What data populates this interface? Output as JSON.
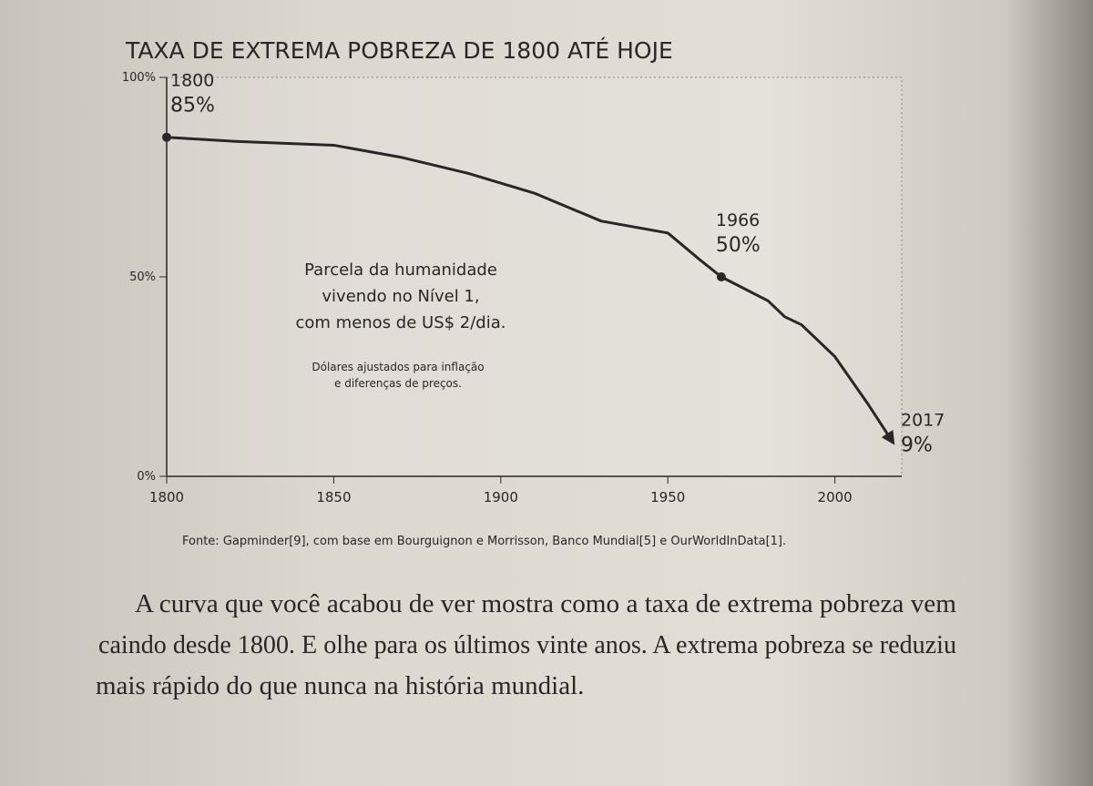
{
  "chart_data": {
    "type": "line",
    "title": "TAXA DE EXTREMA POBREZA DE 1800 ATÉ HOJE",
    "x": [
      1800,
      1820,
      1850,
      1870,
      1890,
      1910,
      1930,
      1950,
      1960,
      1966,
      1980,
      1985,
      1990,
      1995,
      2000,
      2005,
      2010,
      2017
    ],
    "values": [
      85,
      84,
      83,
      80,
      76,
      71,
      64,
      61,
      54,
      50,
      44,
      40,
      38,
      34,
      30,
      24,
      18,
      9
    ],
    "value_labels": [
      "85%",
      null,
      null,
      null,
      null,
      null,
      null,
      null,
      null,
      "50%",
      null,
      null,
      null,
      null,
      null,
      null,
      null,
      "9%"
    ],
    "color": "#2a2526",
    "xlim": [
      1800,
      2020
    ],
    "ylim": [
      0,
      100
    ],
    "xticks": [
      1800,
      1850,
      1900,
      1950,
      2000
    ],
    "yticks": [
      {
        "value": 0,
        "label": "0%"
      },
      {
        "value": 50,
        "label": "50%"
      },
      {
        "value": 100,
        "label": "100%"
      }
    ],
    "caption_lines": [
      "Parcela da humanidade",
      "vivendo no Nível 1,",
      "com menos de US$ 2/dia."
    ],
    "note_lines": [
      "Dólares ajustados para inflação",
      "e diferenças de preços."
    ],
    "source": "Fonte: Gapminder[9], com base em Bourguignon e Morrisson, Banco Mundial[5] e OurWorldInData[1]."
  },
  "page": {
    "paragraph_lines": [
      "A curva que você acabou de ver mostra como a taxa de extrema pobreza vem",
      "caindo desde 1800. E olhe para os últimos vinte anos. A extrema pobreza se reduziu",
      "mais rápido do que nunca na história mundial."
    ]
  }
}
